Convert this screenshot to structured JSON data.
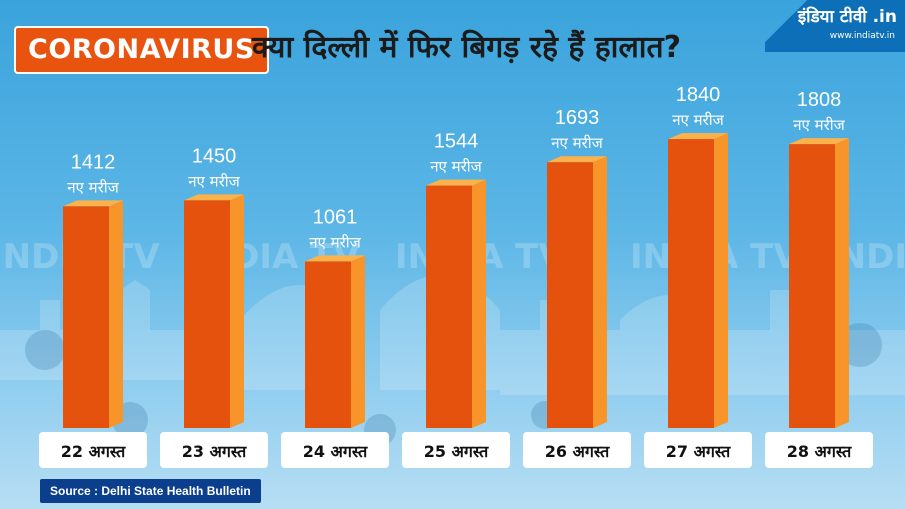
{
  "header": {
    "badge": "CORONAVIRUS",
    "headline": "क्या दिल्ली में फिर बिगड़ रहे हैं हालात?"
  },
  "logo": {
    "text": "इंडिया टीवी .in",
    "url": "www.indiatv.in"
  },
  "watermark": "INDIA TV",
  "source": "Source : Delhi State Health Bulletin",
  "colors": {
    "bar_front": "#e5520e",
    "bar_side": "#f7942a",
    "bar_top": "#fbb24a",
    "value_text": "#ffffff",
    "badge_bg": "#e8540f",
    "source_bg": "#0b3e8c"
  },
  "chart_data": {
    "type": "bar",
    "title": "क्या दिल्ली में फिर बिगड़ रहे हैं हालात?",
    "categories": [
      "22 अगस्त",
      "23 अगस्त",
      "24 अगस्त",
      "25 अगस्त",
      "26 अगस्त",
      "27 अगस्त",
      "28 अगस्त"
    ],
    "values": [
      1412,
      1450,
      1061,
      1544,
      1693,
      1840,
      1808
    ],
    "value_suffix": "नए मरीज",
    "grid": false,
    "legend": "none"
  }
}
